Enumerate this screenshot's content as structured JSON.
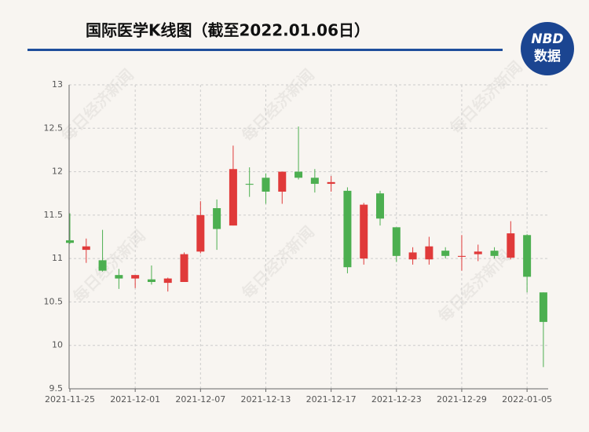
{
  "chart_data": {
    "type": "candlestick",
    "title": "国际医学K线图（截至2022.01.06日）",
    "watermark": "每日经济新闻",
    "logo": {
      "top": "NBD",
      "bottom": "数据"
    },
    "categories": [
      "2021-11-25",
      null,
      null,
      null,
      "2021-12-01",
      null,
      null,
      null,
      "2021-12-07",
      null,
      null,
      null,
      "2021-12-13",
      null,
      null,
      null,
      "2021-12-17",
      null,
      null,
      null,
      "2021-12-23",
      null,
      null,
      null,
      "2021-12-29",
      null,
      null,
      null,
      "2022-01-05",
      null
    ],
    "open": [
      11.21,
      11.1,
      10.98,
      10.81,
      10.77,
      10.76,
      10.72,
      10.73,
      11.08,
      11.58,
      11.38,
      11.86,
      11.93,
      11.77,
      12.0,
      11.93,
      11.86,
      11.78,
      11.0,
      11.75,
      11.36,
      10.99,
      10.99,
      11.09,
      11.02,
      11.05,
      11.09,
      11.01,
      11.27,
      10.61
    ],
    "close": [
      11.18,
      11.14,
      10.86,
      10.77,
      10.81,
      10.73,
      10.77,
      11.05,
      11.5,
      11.34,
      12.03,
      11.85,
      11.77,
      12.0,
      11.93,
      11.86,
      11.88,
      10.9,
      11.62,
      11.46,
      11.03,
      11.07,
      11.14,
      11.03,
      11.03,
      11.08,
      11.03,
      11.29,
      10.79,
      10.27
    ],
    "high": [
      11.52,
      11.23,
      11.33,
      10.88,
      10.81,
      10.92,
      10.78,
      11.07,
      11.66,
      11.68,
      12.3,
      12.05,
      11.98,
      12.0,
      12.52,
      12.03,
      11.95,
      11.82,
      11.64,
      11.78,
      11.36,
      11.13,
      11.25,
      11.13,
      11.27,
      11.16,
      11.13,
      11.43,
      11.28,
      10.61
    ],
    "low": [
      11.17,
      10.95,
      10.85,
      10.65,
      10.66,
      10.7,
      10.62,
      10.73,
      11.06,
      11.1,
      11.38,
      11.71,
      11.63,
      11.63,
      11.91,
      11.76,
      11.77,
      10.83,
      10.93,
      11.38,
      10.96,
      10.93,
      10.93,
      11.0,
      10.86,
      10.97,
      11.0,
      10.99,
      10.61,
      9.75
    ],
    "up_color": "#e03a3a",
    "down_color": "#4caf50",
    "ylim": [
      9.5,
      13
    ],
    "yticks": [
      9.5,
      10,
      10.5,
      11,
      11.5,
      12,
      12.5,
      13
    ],
    "grid": true
  }
}
